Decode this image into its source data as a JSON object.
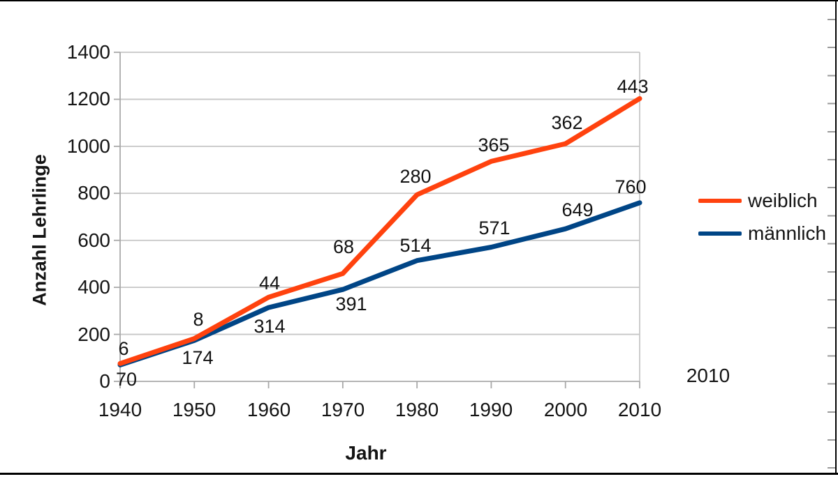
{
  "chart_data": {
    "type": "line",
    "title": "",
    "xlabel": "Jahr",
    "ylabel": "Anzahl Lehrlinge",
    "categories": [
      "1940",
      "1950",
      "1960",
      "1970",
      "1980",
      "1990",
      "2000",
      "2010"
    ],
    "y_tick_labels": [
      "0",
      "200",
      "400",
      "600",
      "800",
      "1000",
      "1200",
      "1400"
    ],
    "y_tick_values": [
      0,
      200,
      400,
      600,
      800,
      1000,
      1200,
      1400
    ],
    "ylim": [
      0,
      1400
    ],
    "grid": true,
    "legend_position": "right-middle",
    "series": [
      {
        "name": "weiblich",
        "color": "#ff420e",
        "values": [
          6,
          8,
          44,
          68,
          280,
          365,
          362,
          443
        ],
        "plotted_line_values": [
          76,
          182,
          358,
          459,
          794,
          936,
          1011,
          1203
        ]
      },
      {
        "name": "männlich",
        "color": "#004586",
        "values": [
          70,
          174,
          314,
          391,
          514,
          571,
          649,
          760
        ],
        "plotted_line_values": [
          70,
          174,
          314,
          391,
          514,
          571,
          649,
          760
        ]
      }
    ],
    "annotation": "2010"
  },
  "colors": {
    "gridline": "#c6c6c6",
    "axis": "#a9a9a9",
    "text": "#141414",
    "frame": "#000000",
    "edge_tick": "#9a9a9a"
  }
}
